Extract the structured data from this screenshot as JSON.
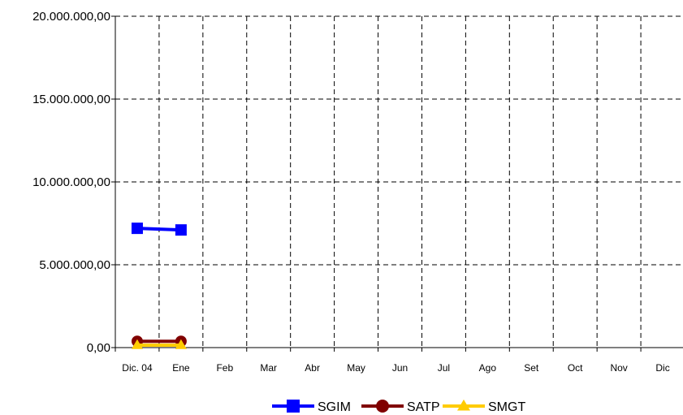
{
  "chart_data": {
    "type": "line",
    "title": "",
    "xlabel": "",
    "ylabel": "",
    "categories": [
      "Dic. 04",
      "Ene",
      "Feb",
      "Mar",
      "Abr",
      "May",
      "Jun",
      "Jul",
      "Ago",
      "Set",
      "Oct",
      "Nov",
      "Dic"
    ],
    "ylim": [
      0,
      20000000
    ],
    "y_ticks": [
      "0,00",
      "5.000.000,00",
      "10.000.000,00",
      "15.000.000,00",
      "20.000.000,00"
    ],
    "y_tick_values": [
      0,
      5000000,
      10000000,
      15000000,
      20000000
    ],
    "grid": true,
    "legend_position": "bottom",
    "series": [
      {
        "name": "SGIM",
        "color": "#0000ff",
        "marker": "square",
        "values": [
          7200000,
          7100000,
          null,
          null,
          null,
          null,
          null,
          null,
          null,
          null,
          null,
          null,
          null
        ]
      },
      {
        "name": "SATP",
        "color": "#800000",
        "marker": "circle",
        "values": [
          380000,
          380000,
          null,
          null,
          null,
          null,
          null,
          null,
          null,
          null,
          null,
          null,
          null
        ]
      },
      {
        "name": "SMGT",
        "color": "#ffcc00",
        "marker": "triangle",
        "values": [
          150000,
          150000,
          null,
          null,
          null,
          null,
          null,
          null,
          null,
          null,
          null,
          null,
          null
        ]
      }
    ]
  }
}
